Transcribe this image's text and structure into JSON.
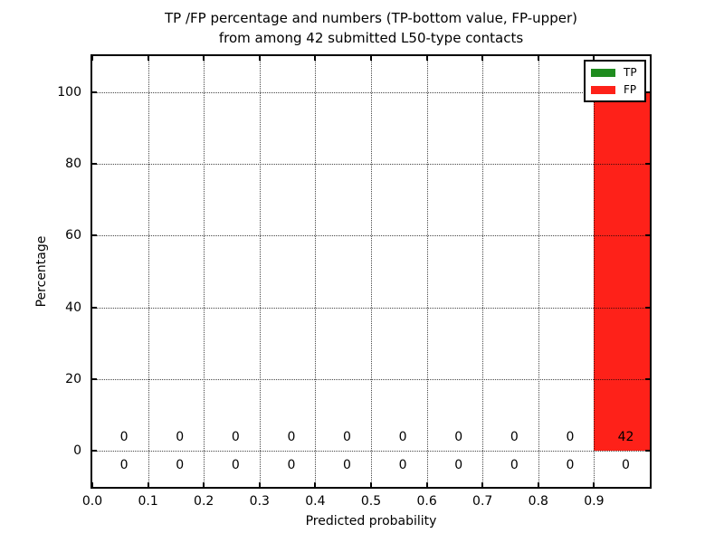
{
  "figure": {
    "title_line1": "TP /FP percentage and numbers (TP-bottom value, FP-upper)",
    "title_line2": "from among 42 submitted L50-type contacts",
    "xlabel": "Predicted probability",
    "ylabel": "Percentage"
  },
  "legend": {
    "position": "upper right",
    "items": [
      {
        "label": "TP",
        "color": "#1f8c1f"
      },
      {
        "label": "FP",
        "color": "#fe2119"
      }
    ]
  },
  "chart_data": {
    "type": "bar",
    "stacked": true,
    "title": "TP /FP percentage and numbers (TP-bottom value, FP-upper) from among 42 submitted L50-type contacts",
    "xlabel": "Predicted probability",
    "ylabel": "Percentage",
    "xlim": [
      0.0,
      1.0
    ],
    "ylim": [
      -10,
      110
    ],
    "grid": "dotted",
    "legend_position": "upper right",
    "bin_width": 0.1,
    "bin_starts": [
      0.0,
      0.1,
      0.2,
      0.3,
      0.4,
      0.5,
      0.6,
      0.7,
      0.8,
      0.9
    ],
    "xtick_values": [
      0.0,
      0.1,
      0.2,
      0.3,
      0.4,
      0.5,
      0.6,
      0.7,
      0.8,
      0.9
    ],
    "xticks": [
      "0.0",
      "0.1",
      "0.2",
      "0.3",
      "0.4",
      "0.5",
      "0.6",
      "0.7",
      "0.8",
      "0.9"
    ],
    "ytick_values": [
      0,
      20,
      40,
      60,
      80,
      100
    ],
    "yticks": [
      "0",
      "20",
      "40",
      "60",
      "80",
      "100"
    ],
    "series": [
      {
        "name": "TP",
        "color": "#1f8c1f",
        "percent": [
          0,
          0,
          0,
          0,
          0,
          0,
          0,
          0,
          0,
          0
        ],
        "counts": [
          0,
          0,
          0,
          0,
          0,
          0,
          0,
          0,
          0,
          0
        ]
      },
      {
        "name": "FP",
        "color": "#fe2119",
        "percent": [
          0,
          0,
          0,
          0,
          0,
          0,
          0,
          0,
          0,
          100
        ],
        "counts": [
          0,
          0,
          0,
          0,
          0,
          0,
          0,
          0,
          0,
          42
        ]
      }
    ],
    "upper_row_labels": [
      "0",
      "0",
      "0",
      "0",
      "0",
      "0",
      "0",
      "0",
      "0",
      "42"
    ],
    "lower_row_labels": [
      "0",
      "0",
      "0",
      "0",
      "0",
      "0",
      "0",
      "0",
      "0",
      "0"
    ],
    "total_contacts": 42
  }
}
